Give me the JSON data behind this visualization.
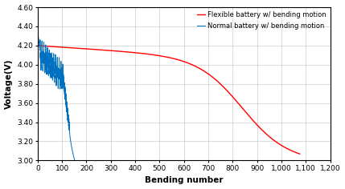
{
  "title": "",
  "xlabel": "Bending number",
  "ylabel": "Voltage(V)",
  "xlim": [
    0,
    1200
  ],
  "ylim": [
    3.0,
    4.6
  ],
  "xticks": [
    0,
    100,
    200,
    300,
    400,
    500,
    600,
    700,
    800,
    900,
    1000,
    1100,
    1200
  ],
  "yticks": [
    3.0,
    3.2,
    3.4,
    3.6,
    3.8,
    4.0,
    4.2,
    4.4,
    4.6
  ],
  "legend": [
    {
      "label": "Flexible battery w/ bending motion",
      "color": "#FF0000"
    },
    {
      "label": "Normal battery w/ bending motion",
      "color": "#0070C0"
    }
  ],
  "red_start_x": 0,
  "red_end_x": 1075,
  "red_start_v": 4.2,
  "red_end_v": 3.0,
  "blue_start_x": 0,
  "blue_end_x": 152,
  "blue_start_v": 4.15,
  "blue_fail_v": 3.0,
  "background_color": "#FFFFFF",
  "grid_color": "#CCCCCC",
  "figsize": [
    4.29,
    2.36
  ],
  "dpi": 100
}
